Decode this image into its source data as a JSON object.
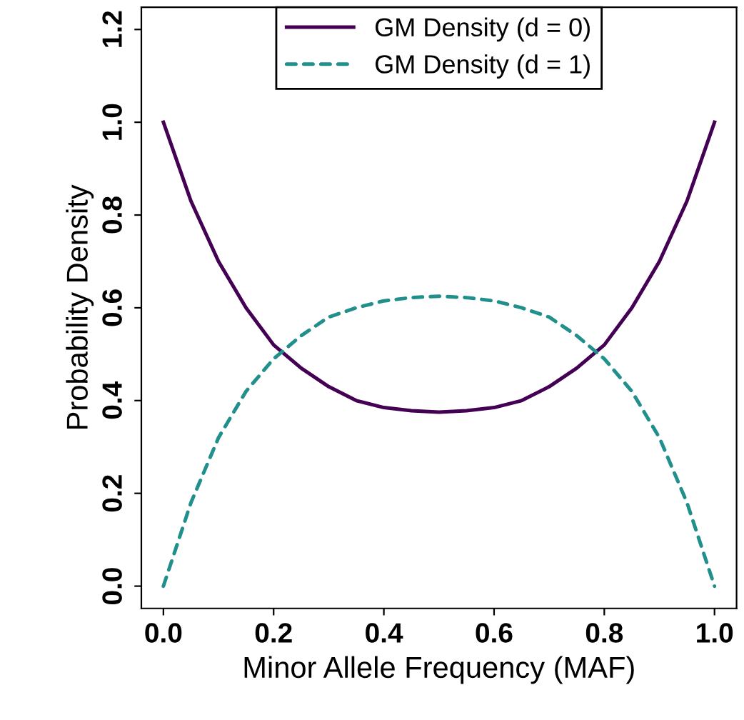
{
  "chart_data": {
    "type": "line",
    "xlabel": "Minor Allele Frequency (MAF)",
    "ylabel": "Probability Density",
    "x": [
      0,
      0.05,
      0.1,
      0.15,
      0.2,
      0.25,
      0.3,
      0.35,
      0.4,
      0.45,
      0.5,
      0.55,
      0.6,
      0.65,
      0.7,
      0.75,
      0.8,
      0.85,
      0.9,
      0.95,
      1
    ],
    "series": [
      {
        "name": "GM Density (d = 0)",
        "color": "#440154",
        "line_style": "solid",
        "values": [
          1.0,
          0.83,
          0.7,
          0.6,
          0.52,
          0.47,
          0.43,
          0.4,
          0.385,
          0.378,
          0.375,
          0.378,
          0.385,
          0.4,
          0.43,
          0.47,
          0.52,
          0.6,
          0.7,
          0.83,
          1.0
        ]
      },
      {
        "name": "GM Density (d = 1)",
        "color": "#21908c",
        "line_style": "dashed",
        "values": [
          0,
          0.18,
          0.32,
          0.42,
          0.49,
          0.54,
          0.58,
          0.6,
          0.615,
          0.622,
          0.625,
          0.622,
          0.615,
          0.6,
          0.58,
          0.54,
          0.49,
          0.42,
          0.32,
          0.18,
          0
        ]
      }
    ],
    "xlim": [
      -0.04,
      1.04
    ],
    "ylim": [
      -0.048,
      1.248
    ],
    "xticks": [
      {
        "value": 0,
        "label": "0.0"
      },
      {
        "value": 0.2,
        "label": "0.2"
      },
      {
        "value": 0.4,
        "label": "0.4"
      },
      {
        "value": 0.6,
        "label": "0.6"
      },
      {
        "value": 0.8,
        "label": "0.8"
      },
      {
        "value": 1,
        "label": "1.0"
      }
    ],
    "yticks": [
      {
        "value": 0,
        "label": "0.0"
      },
      {
        "value": 0.2,
        "label": "0.2"
      },
      {
        "value": 0.4,
        "label": "0.4"
      },
      {
        "value": 0.6,
        "label": "0.6"
      },
      {
        "value": 0.8,
        "label": "0.8"
      },
      {
        "value": 1,
        "label": "1.0"
      },
      {
        "value": 1.2,
        "label": "1.2"
      }
    ],
    "grid": false,
    "legend": "top",
    "marker": "none"
  }
}
